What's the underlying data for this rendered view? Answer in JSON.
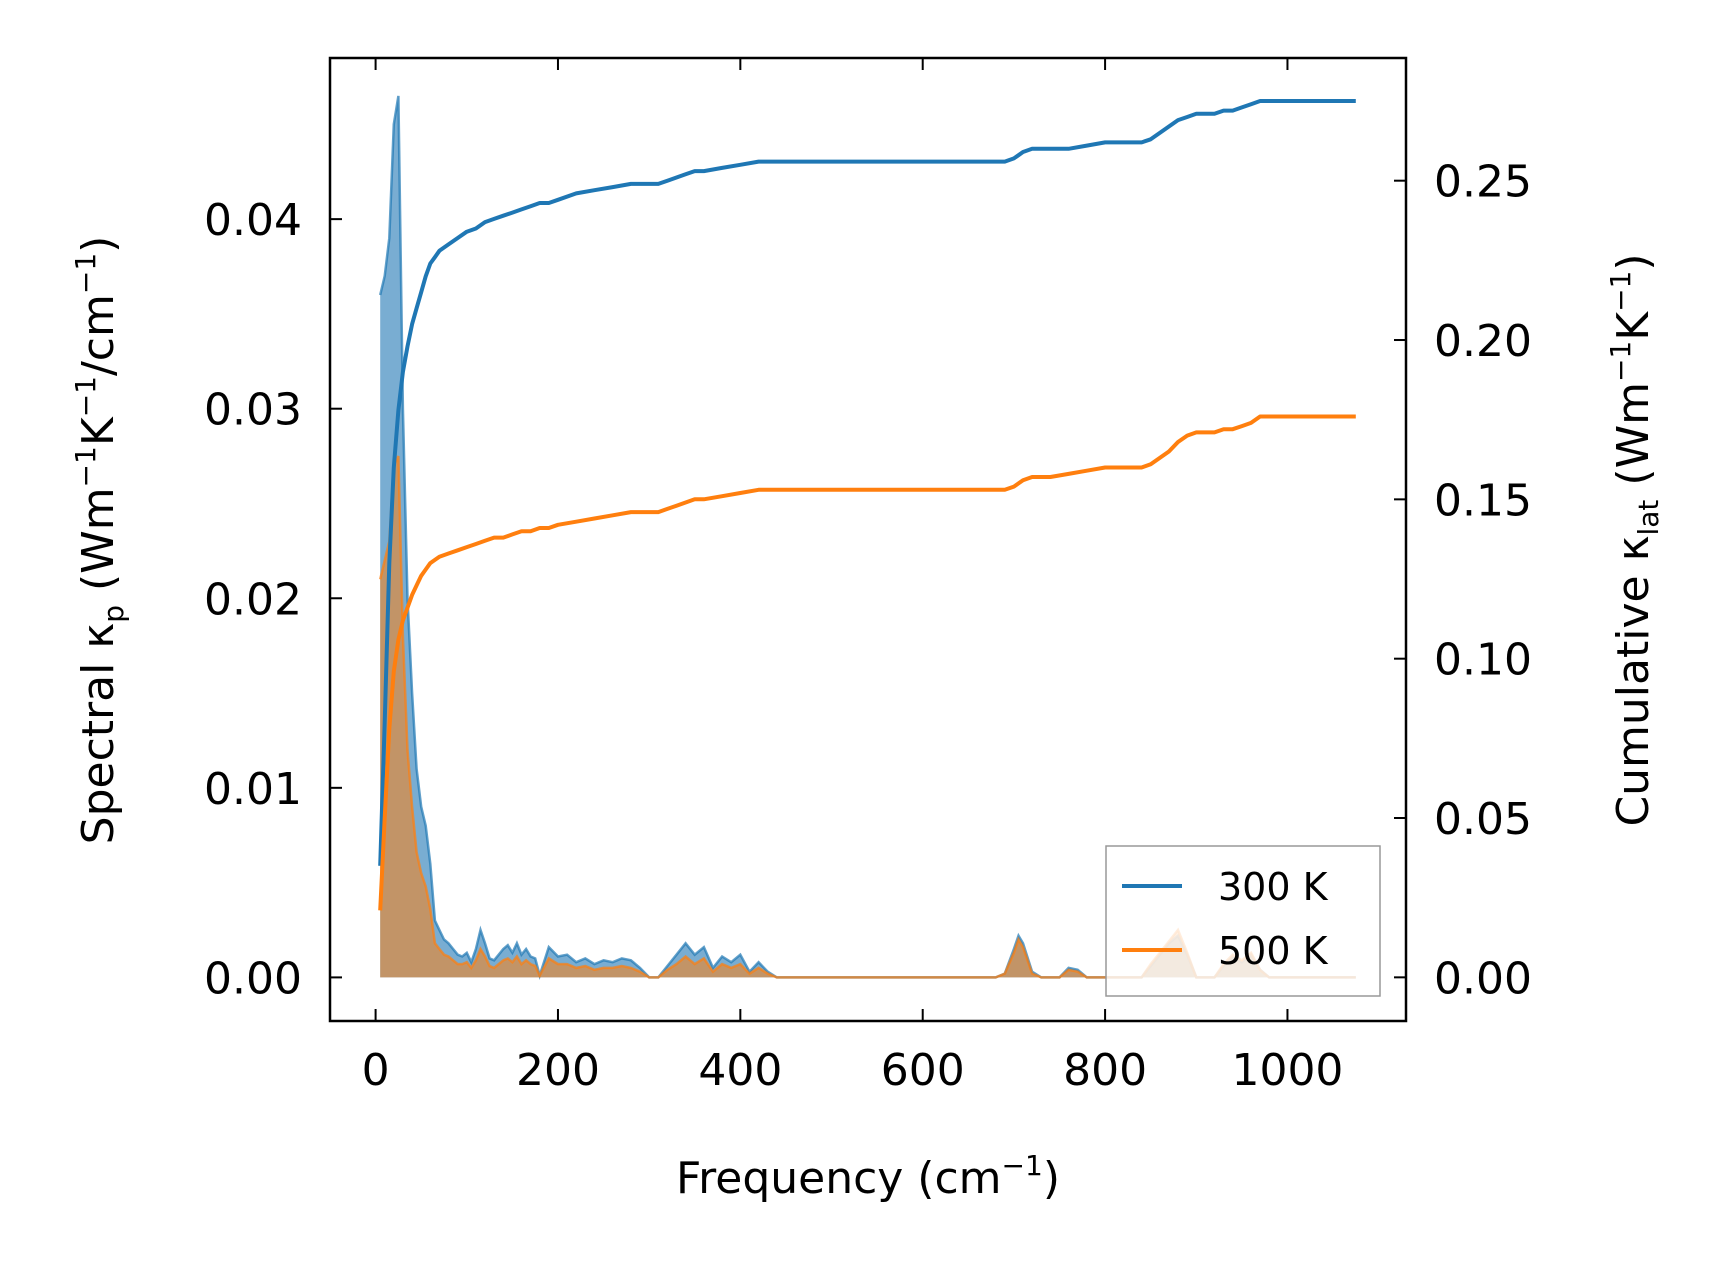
{
  "chart_data": {
    "type": "line",
    "title": "",
    "xlabel": "Frequency (cm⁻¹)",
    "ylabel_left": "Spectral κₚ (Wm⁻¹K⁻¹/cm⁻¹)",
    "ylabel_right": "Cumulative κ_lat (Wm⁻¹K⁻¹)",
    "xlim": [
      -50,
      1130
    ],
    "ylim_left": [
      -0.0023,
      0.0485
    ],
    "ylim_right": [
      -0.0137,
      0.2885
    ],
    "xticks": [
      0,
      200,
      400,
      600,
      800,
      1000
    ],
    "yticks_left": [
      0.0,
      0.01,
      0.02,
      0.03,
      0.04
    ],
    "yticks_right": [
      0.0,
      0.05,
      0.1,
      0.15,
      0.2,
      0.25
    ],
    "xtick_labels": [
      "0",
      "200",
      "400",
      "600",
      "800",
      "1000"
    ],
    "ytick_labels_left": [
      "0.00",
      "0.01",
      "0.02",
      "0.03",
      "0.04"
    ],
    "ytick_labels_right": [
      "0.00",
      "0.05",
      "0.10",
      "0.15",
      "0.20",
      "0.25"
    ],
    "legend_position": "lower right",
    "series": [
      {
        "name": "300 K",
        "color": "#1f77b4",
        "spectral": {
          "x": [
            5,
            10,
            15,
            20,
            25,
            30,
            35,
            40,
            45,
            50,
            55,
            60,
            65,
            70,
            75,
            80,
            85,
            90,
            95,
            100,
            105,
            110,
            115,
            120,
            125,
            130,
            135,
            140,
            145,
            150,
            155,
            160,
            165,
            170,
            175,
            180,
            190,
            200,
            210,
            220,
            230,
            240,
            250,
            260,
            270,
            280,
            290,
            300,
            310,
            320,
            330,
            340,
            350,
            360,
            370,
            380,
            390,
            400,
            410,
            420,
            430,
            440,
            460,
            500,
            600,
            680,
            690,
            700,
            705,
            710,
            720,
            730,
            750,
            760,
            770,
            780,
            800,
            820,
            840,
            850,
            860,
            870,
            880,
            890,
            900,
            920,
            930,
            940,
            950,
            960,
            970,
            980,
            1000,
            1075
          ],
          "y": [
            0.036,
            0.037,
            0.039,
            0.045,
            0.0465,
            0.03,
            0.02,
            0.015,
            0.011,
            0.009,
            0.008,
            0.006,
            0.003,
            0.0025,
            0.002,
            0.0018,
            0.0015,
            0.0012,
            0.0011,
            0.0013,
            0.0008,
            0.0015,
            0.0025,
            0.0018,
            0.001,
            0.0009,
            0.0012,
            0.0015,
            0.0017,
            0.0013,
            0.0018,
            0.0012,
            0.0015,
            0.0011,
            0.001,
            0.0001,
            0.0016,
            0.0011,
            0.0012,
            0.0008,
            0.001,
            0.0007,
            0.0009,
            0.0008,
            0.001,
            0.0009,
            0.0005,
            0.0,
            0.0,
            0.0006,
            0.0012,
            0.0018,
            0.0012,
            0.0016,
            0.0005,
            0.0011,
            0.0008,
            0.0012,
            0.0003,
            0.0008,
            0.0003,
            0.0,
            0.0,
            0.0,
            0.0,
            0.0,
            0.0002,
            0.0015,
            0.0022,
            0.0018,
            0.0003,
            0.0,
            0.0,
            0.0005,
            0.0004,
            0.0,
            0.0,
            0.0,
            0.0,
            0.0006,
            0.0012,
            0.0018,
            0.0022,
            0.0012,
            0.0,
            0.0,
            0.0006,
            0.0011,
            0.0008,
            0.0012,
            0.0004,
            0.0,
            0.0,
            0.0
          ]
        },
        "cumulative": {
          "x": [
            5,
            10,
            15,
            20,
            25,
            30,
            35,
            40,
            45,
            50,
            55,
            60,
            65,
            70,
            80,
            90,
            100,
            110,
            120,
            130,
            140,
            150,
            160,
            170,
            180,
            190,
            200,
            220,
            240,
            260,
            280,
            300,
            310,
            320,
            330,
            340,
            350,
            360,
            380,
            400,
            420,
            440,
            460,
            500,
            600,
            680,
            690,
            700,
            705,
            710,
            720,
            740,
            760,
            780,
            800,
            820,
            840,
            850,
            860,
            870,
            880,
            890,
            900,
            920,
            930,
            940,
            950,
            960,
            970,
            980,
            1000,
            1075
          ],
          "y": [
            0.035,
            0.08,
            0.13,
            0.16,
            0.178,
            0.19,
            0.198,
            0.205,
            0.21,
            0.215,
            0.22,
            0.224,
            0.226,
            0.228,
            0.23,
            0.232,
            0.234,
            0.235,
            0.237,
            0.238,
            0.239,
            0.24,
            0.241,
            0.242,
            0.243,
            0.243,
            0.244,
            0.246,
            0.247,
            0.248,
            0.249,
            0.249,
            0.249,
            0.25,
            0.251,
            0.252,
            0.253,
            0.253,
            0.254,
            0.255,
            0.256,
            0.256,
            0.256,
            0.256,
            0.256,
            0.256,
            0.256,
            0.257,
            0.258,
            0.259,
            0.26,
            0.26,
            0.26,
            0.261,
            0.262,
            0.262,
            0.262,
            0.263,
            0.265,
            0.267,
            0.269,
            0.27,
            0.271,
            0.271,
            0.272,
            0.272,
            0.273,
            0.274,
            0.275,
            0.275,
            0.275,
            0.275
          ]
        }
      },
      {
        "name": "500 K",
        "color": "#ff7f0e",
        "spectral": {
          "x": [
            5,
            10,
            15,
            20,
            25,
            30,
            35,
            40,
            45,
            50,
            55,
            60,
            65,
            70,
            75,
            80,
            85,
            90,
            95,
            100,
            105,
            110,
            115,
            120,
            125,
            130,
            135,
            140,
            145,
            150,
            155,
            160,
            165,
            170,
            175,
            180,
            190,
            200,
            210,
            220,
            230,
            240,
            250,
            260,
            270,
            280,
            290,
            300,
            310,
            320,
            330,
            340,
            350,
            360,
            370,
            380,
            390,
            400,
            410,
            420,
            430,
            440,
            460,
            500,
            600,
            680,
            690,
            700,
            705,
            710,
            720,
            730,
            750,
            760,
            770,
            780,
            800,
            820,
            840,
            850,
            860,
            870,
            880,
            890,
            900,
            920,
            930,
            940,
            950,
            960,
            970,
            980,
            1000,
            1075
          ],
          "y": [
            0.021,
            0.022,
            0.023,
            0.027,
            0.0275,
            0.018,
            0.012,
            0.009,
            0.0066,
            0.0055,
            0.0048,
            0.0036,
            0.0018,
            0.0015,
            0.0012,
            0.0011,
            0.0009,
            0.0007,
            0.0007,
            0.0008,
            0.0005,
            0.0009,
            0.0015,
            0.0011,
            0.0006,
            0.0005,
            0.0007,
            0.0009,
            0.001,
            0.0008,
            0.0011,
            0.0007,
            0.0009,
            0.0007,
            0.0006,
            0.0001,
            0.001,
            0.0007,
            0.0007,
            0.0005,
            0.0006,
            0.0004,
            0.0005,
            0.0005,
            0.0006,
            0.0005,
            0.0003,
            0.0,
            0.0,
            0.0004,
            0.0007,
            0.0011,
            0.0007,
            0.001,
            0.0003,
            0.0007,
            0.0005,
            0.0007,
            0.0002,
            0.0005,
            0.0002,
            0.0,
            0.0,
            0.0,
            0.0,
            0.0,
            0.0002,
            0.0013,
            0.002,
            0.0016,
            0.0002,
            0.0,
            0.0,
            0.0004,
            0.0003,
            0.0,
            0.0,
            0.0,
            0.0,
            0.0007,
            0.0013,
            0.0019,
            0.0025,
            0.0013,
            0.0,
            0.0,
            0.0007,
            0.0012,
            0.0009,
            0.0013,
            0.0004,
            0.0,
            0.0,
            0.0
          ]
        },
        "cumulative": {
          "x": [
            5,
            10,
            15,
            20,
            25,
            30,
            35,
            40,
            45,
            50,
            55,
            60,
            65,
            70,
            80,
            90,
            100,
            110,
            120,
            130,
            140,
            150,
            160,
            170,
            180,
            190,
            200,
            220,
            240,
            260,
            280,
            300,
            310,
            320,
            330,
            340,
            350,
            360,
            380,
            400,
            420,
            440,
            460,
            500,
            600,
            680,
            690,
            700,
            705,
            710,
            720,
            740,
            760,
            780,
            800,
            820,
            840,
            850,
            860,
            870,
            880,
            890,
            900,
            920,
            930,
            940,
            950,
            960,
            970,
            980,
            1000,
            1075
          ],
          "y": [
            0.021,
            0.05,
            0.078,
            0.096,
            0.106,
            0.112,
            0.116,
            0.12,
            0.123,
            0.126,
            0.128,
            0.13,
            0.131,
            0.132,
            0.133,
            0.134,
            0.135,
            0.136,
            0.137,
            0.138,
            0.138,
            0.139,
            0.14,
            0.14,
            0.141,
            0.141,
            0.142,
            0.143,
            0.144,
            0.145,
            0.146,
            0.146,
            0.146,
            0.147,
            0.148,
            0.149,
            0.15,
            0.15,
            0.151,
            0.152,
            0.153,
            0.153,
            0.153,
            0.153,
            0.153,
            0.153,
            0.153,
            0.154,
            0.155,
            0.156,
            0.157,
            0.157,
            0.158,
            0.159,
            0.16,
            0.16,
            0.16,
            0.161,
            0.163,
            0.165,
            0.168,
            0.17,
            0.171,
            0.171,
            0.172,
            0.172,
            0.173,
            0.174,
            0.176,
            0.176,
            0.176,
            0.176
          ]
        }
      }
    ]
  }
}
